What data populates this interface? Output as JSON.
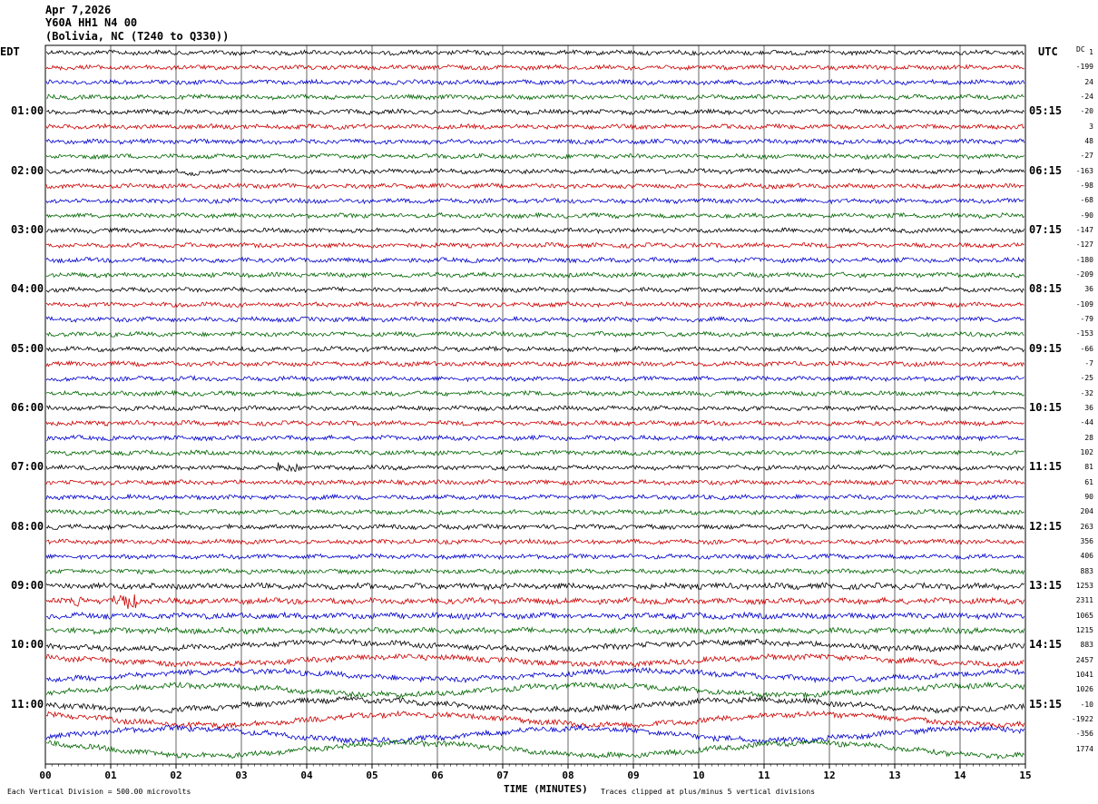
{
  "header": {
    "date": "Apr 7,2026",
    "station": "Y60A HH1 N4 00",
    "location": "(Bolivia, NC (T240 to Q330))"
  },
  "axis": {
    "left_label": "EDT",
    "right_label": "UTC",
    "dc_label": "DC",
    "xlabel": "TIME (MINUTES)",
    "footer_left": "Each Vertical Division =  500.00 microvolts",
    "footer_right": "Traces clipped at plus/minus 5 vertical divisions"
  },
  "colors": [
    "#000000",
    "#cc0000",
    "#0000cc",
    "#006600"
  ],
  "chart_data": {
    "type": "line",
    "x_range": [
      0,
      15
    ],
    "x_ticks": [
      "00",
      "01",
      "02",
      "03",
      "04",
      "05",
      "06",
      "07",
      "08",
      "09",
      "10",
      "11",
      "12",
      "13",
      "14",
      "15"
    ],
    "rows_per_hour": 4,
    "edt_hours": [
      "01:00",
      "02:00",
      "03:00",
      "04:00",
      "05:00",
      "06:00",
      "07:00",
      "08:00",
      "09:00",
      "10:00",
      "11:00"
    ],
    "utc_hours": [
      "05:15",
      "06:15",
      "07:15",
      "08:15",
      "09:15",
      "10:15",
      "11:15",
      "12:15",
      "13:15",
      "14:15",
      "15:15"
    ],
    "dc_offsets": [
      "1",
      "-199",
      "24",
      "-24",
      "-20",
      "3",
      "48",
      "-27",
      "-163",
      "-98",
      "-68",
      "-90",
      "-147",
      "-127",
      "-180",
      "-209",
      "36",
      "-109",
      "-79",
      "-153",
      "-66",
      "-7",
      "-25",
      "-32",
      "36",
      "-44",
      "28",
      "102",
      "81",
      "61",
      "90",
      "204",
      "263",
      "356",
      "406",
      "883",
      "1253",
      "2311",
      "1065",
      "1215",
      "883",
      "2457",
      "1041",
      "1026",
      "-10",
      "-1922",
      "-356",
      "1774"
    ],
    "trace_count": 48
  }
}
